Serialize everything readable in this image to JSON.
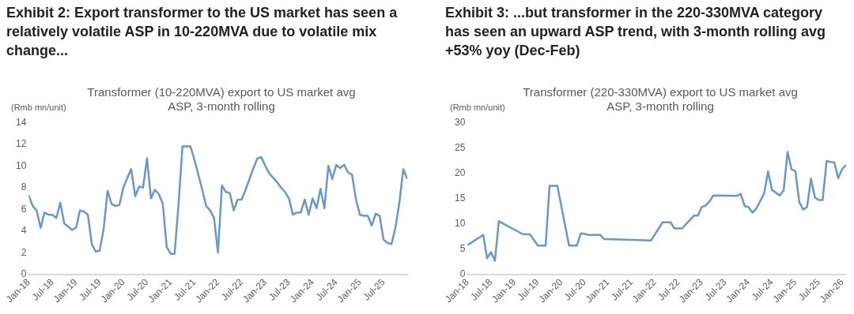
{
  "chart_data": [
    {
      "type": "line",
      "title": "Exhibit 2: Export transformer to the US market has seen a relatively volatile ASP in 10-220MVA due to volatile mix change...",
      "subtitle": "Transformer (10-220MVA) export to US market avg ASP, 3-month rolling",
      "ylabel": "(Rmb mn/unit)",
      "x": [
        "2018-01",
        "2018-02",
        "2018-03",
        "2018-04",
        "2018-05",
        "2018-06",
        "2018-07",
        "2018-08",
        "2018-09",
        "2018-10",
        "2018-11",
        "2018-12",
        "2019-01",
        "2019-02",
        "2019-03",
        "2019-04",
        "2019-05",
        "2019-06",
        "2019-07",
        "2019-08",
        "2019-09",
        "2019-10",
        "2019-11",
        "2019-12",
        "2020-01",
        "2020-02",
        "2020-03",
        "2020-04",
        "2020-05",
        "2020-06",
        "2020-07",
        "2020-08",
        "2020-09",
        "2020-10",
        "2020-11",
        "2020-12",
        "2021-01",
        "2021-02",
        "2021-03",
        "2021-04",
        "2021-05",
        "2021-06",
        "2021-07",
        "2021-08",
        "2021-09",
        "2021-10",
        "2021-11",
        "2021-12",
        "2022-01",
        "2022-02",
        "2022-03",
        "2022-04",
        "2022-05",
        "2022-06",
        "2022-07",
        "2022-08",
        "2022-09",
        "2022-10",
        "2022-11",
        "2022-12",
        "2023-01",
        "2023-02",
        "2023-03",
        "2023-04",
        "2023-05",
        "2023-06",
        "2023-07",
        "2023-08",
        "2023-09",
        "2023-10",
        "2023-11",
        "2023-12",
        "2024-01",
        "2024-02",
        "2024-03",
        "2024-04",
        "2024-05",
        "2024-06",
        "2024-07",
        "2024-08",
        "2024-09",
        "2024-10",
        "2024-11",
        "2024-12",
        "2025-01",
        "2025-02",
        "2025-03",
        "2025-04",
        "2025-05",
        "2025-06",
        "2025-07",
        "2025-08",
        "2025-09",
        "2025-10",
        "2025-11",
        "2025-12",
        "2026-01"
      ],
      "series": [
        {
          "color": "#6b96c8",
          "values": [
            7.3,
            6.3,
            5.9,
            4.3,
            5.7,
            5.5,
            5.5,
            5.2,
            6.6,
            4.7,
            4.4,
            4.1,
            4.3,
            5.9,
            5.8,
            5.5,
            2.8,
            2.1,
            2.2,
            4.2,
            7.7,
            6.5,
            6.3,
            6.4,
            8.0,
            8.9,
            9.7,
            7.2,
            8.1,
            8.0,
            10.7,
            7.0,
            7.8,
            7.4,
            6.5,
            2.5,
            1.9,
            1.9,
            6.5,
            11.8,
            11.8,
            11.8,
            10.6,
            9.2,
            7.8,
            6.3,
            5.9,
            5.2,
            2.0,
            8.2,
            7.6,
            7.5,
            5.9,
            6.9,
            6.9,
            7.8,
            8.8,
            9.8,
            10.7,
            10.8,
            10.0,
            9.3,
            8.9,
            8.5,
            8.0,
            7.6,
            7.0,
            5.5,
            5.7,
            5.7,
            6.9,
            5.5,
            7.0,
            6.1,
            7.9,
            6.1,
            10.0,
            8.8,
            10.1,
            9.8,
            10.1,
            9.4,
            9.2,
            6.9,
            5.5,
            5.4,
            5.4,
            4.5,
            5.6,
            5.4,
            3.2,
            2.9,
            2.8,
            4.3,
            6.6,
            9.7,
            8.8
          ]
        }
      ],
      "xlim": [
        "2018-01",
        "2026-01"
      ],
      "xticks": [
        {
          "value": "2018-01",
          "label": "Jan-18"
        },
        {
          "value": "2018-07",
          "label": "Jul-18"
        },
        {
          "value": "2019-01",
          "label": "Jan-19"
        },
        {
          "value": "2019-07",
          "label": "Jul-19"
        },
        {
          "value": "2020-01",
          "label": "Jan-20"
        },
        {
          "value": "2020-07",
          "label": "Jul-20"
        },
        {
          "value": "2021-01",
          "label": "Jan-21"
        },
        {
          "value": "2021-07",
          "label": "Jul-21"
        },
        {
          "value": "2022-01",
          "label": "Jan-22"
        },
        {
          "value": "2022-07",
          "label": "Jul-22"
        },
        {
          "value": "2023-01",
          "label": "Jan-23"
        },
        {
          "value": "2023-07",
          "label": "Jul-23"
        },
        {
          "value": "2024-01",
          "label": "Jan-24"
        },
        {
          "value": "2024-07",
          "label": "Jul-24"
        },
        {
          "value": "2025-01",
          "label": "Jan-25"
        },
        {
          "value": "2025-07",
          "label": "Jul-25"
        }
      ],
      "ylim": [
        0,
        14
      ],
      "yticks": [
        0,
        2,
        4,
        6,
        8,
        10,
        12,
        14
      ],
      "grid": false,
      "legend": false
    },
    {
      "type": "line",
      "title": "Exhibit 3: ...but transformer in the 220-330MVA category has seen an upward ASP trend, with 3-month rolling avg +53% yoy (Dec-Feb)",
      "subtitle": "Transformer (220-330MVA) export to US market avg ASP, 3-month rolling",
      "ylabel": "(Rmb mn/unit)",
      "x": [
        "2018-01",
        "2018-05",
        "2018-06",
        "2018-07",
        "2018-08",
        "2018-09",
        "2019-03",
        "2019-05",
        "2019-07",
        "2019-09",
        "2019-10",
        "2019-12",
        "2020-03",
        "2020-05",
        "2020-06",
        "2020-07",
        "2020-08",
        "2020-11",
        "2020-12",
        "2021-12",
        "2022-03",
        "2022-05",
        "2022-06",
        "2022-08",
        "2022-11",
        "2022-12",
        "2023-01",
        "2023-02",
        "2023-03",
        "2023-04",
        "2023-10",
        "2023-11",
        "2023-12",
        "2024-01",
        "2024-02",
        "2024-03",
        "2024-05",
        "2024-06",
        "2024-07",
        "2024-09",
        "2024-10",
        "2024-11",
        "2024-12",
        "2025-01",
        "2025-02",
        "2025-03",
        "2025-04",
        "2025-05",
        "2025-06",
        "2025-07",
        "2025-08",
        "2025-09",
        "2025-10",
        "2025-11",
        "2025-12",
        "2026-01",
        "2026-02"
      ],
      "series": [
        {
          "color": "#6b96c8",
          "values": [
            5.8,
            7.8,
            3.2,
            4.4,
            2.7,
            10.5,
            8.0,
            7.9,
            5.7,
            5.7,
            17.5,
            17.5,
            5.7,
            5.7,
            8.1,
            8.0,
            7.8,
            7.8,
            7.0,
            6.7,
            10.3,
            10.3,
            9.1,
            9.1,
            11.6,
            11.6,
            13.3,
            13.6,
            14.4,
            15.6,
            15.5,
            15.9,
            13.5,
            13.3,
            12.2,
            13.0,
            16.0,
            20.3,
            16.7,
            15.6,
            16.6,
            24.2,
            20.8,
            20.4,
            14.3,
            12.8,
            13.3,
            18.9,
            15.2,
            14.7,
            14.7,
            22.4,
            22.2,
            22.1,
            19.0,
            20.8,
            21.6
          ]
        }
      ],
      "xlim": [
        "2018-01",
        "2026-02"
      ],
      "xticks": [
        {
          "value": "2018-01",
          "label": "Jan-18"
        },
        {
          "value": "2018-07",
          "label": "Jul-18"
        },
        {
          "value": "2019-01",
          "label": "Jan-19"
        },
        {
          "value": "2019-07",
          "label": "Jul-19"
        },
        {
          "value": "2020-01",
          "label": "Jan-20"
        },
        {
          "value": "2020-07",
          "label": "Jul-20"
        },
        {
          "value": "2021-01",
          "label": "Jan-21"
        },
        {
          "value": "2021-07",
          "label": "Jul-21"
        },
        {
          "value": "2022-01",
          "label": "Jan-22"
        },
        {
          "value": "2022-07",
          "label": "Jul-22"
        },
        {
          "value": "2023-01",
          "label": "Jan-23"
        },
        {
          "value": "2023-07",
          "label": "Jul-23"
        },
        {
          "value": "2024-01",
          "label": "Jan-24"
        },
        {
          "value": "2024-07",
          "label": "Jul-24"
        },
        {
          "value": "2025-01",
          "label": "Jan-25"
        },
        {
          "value": "2025-07",
          "label": "Jul-25"
        },
        {
          "value": "2026-01",
          "label": "Jan-26"
        }
      ],
      "ylim": [
        0,
        30
      ],
      "yticks": [
        0,
        5,
        10,
        15,
        20,
        25,
        30
      ],
      "grid": false,
      "legend": false
    }
  ]
}
